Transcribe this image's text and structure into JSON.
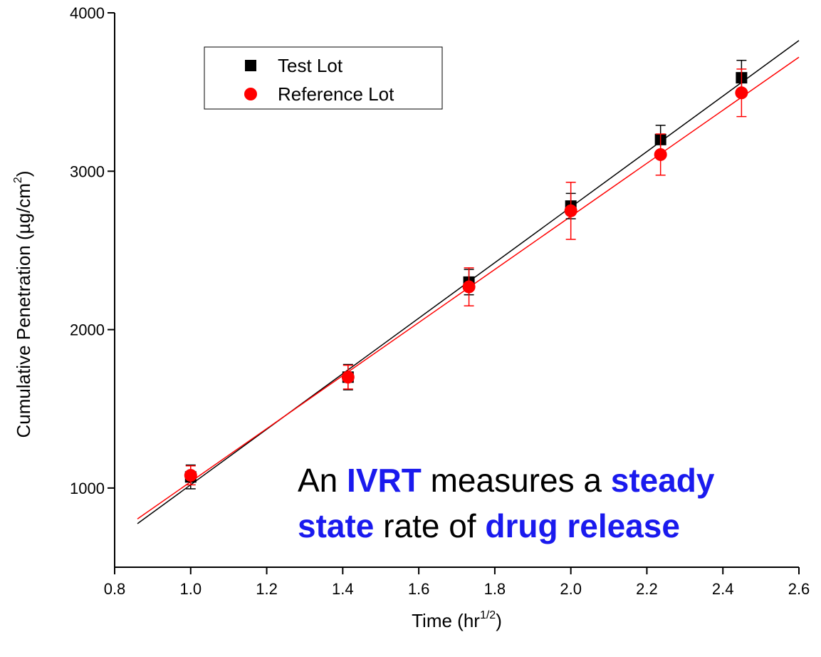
{
  "chart_data": {
    "type": "scatter",
    "xlabel": {
      "text": "Time (hr",
      "sup": "1/2",
      "tail": ")"
    },
    "ylabel": {
      "text": "Cumulative Penetration (µg/cm",
      "sup": "2",
      "tail": ")"
    },
    "x": [
      1.0,
      1.414,
      1.732,
      2.0,
      2.236,
      2.449
    ],
    "series": [
      {
        "name": "Test Lot",
        "color": "#000000",
        "marker": "square",
        "values": [
          1070,
          1700,
          2300,
          2780,
          3200,
          3590
        ],
        "errors": [
          75,
          80,
          80,
          80,
          90,
          110
        ]
      },
      {
        "name": "Reference Lot",
        "color": "#ff0000",
        "marker": "circle",
        "values": [
          1080,
          1700,
          2270,
          2750,
          3105,
          3495
        ],
        "errors": [
          60,
          75,
          120,
          180,
          130,
          150
        ]
      }
    ],
    "fit_lines": [
      {
        "color": "#000000",
        "x": [
          0.86,
          2.6
        ],
        "values": [
          775,
          3825
        ]
      },
      {
        "color": "#ff0000",
        "x": [
          0.86,
          2.6
        ],
        "values": [
          805,
          3720
        ]
      }
    ],
    "xlim": [
      0.8,
      2.6
    ],
    "xticks": [
      {
        "value": 0.8,
        "label": "0.8"
      },
      {
        "value": 1.0,
        "label": "1.0"
      },
      {
        "value": 1.2,
        "label": "1.2"
      },
      {
        "value": 1.4,
        "label": "1.4"
      },
      {
        "value": 1.6,
        "label": "1.6"
      },
      {
        "value": 1.8,
        "label": "1.8"
      },
      {
        "value": 2.0,
        "label": "2.0"
      },
      {
        "value": 2.2,
        "label": "2.2"
      },
      {
        "value": 2.4,
        "label": "2.4"
      },
      {
        "value": 2.6,
        "label": "2.6"
      }
    ],
    "ylim": [
      500,
      4000
    ],
    "yticks": [
      1000,
      2000,
      3000,
      4000
    ],
    "legend": "top-left",
    "annotation": {
      "emphasis_color": "#1a1aee",
      "lines": [
        [
          {
            "text": "An "
          },
          {
            "text": "IVRT",
            "emphasis": true
          },
          {
            "text": " measures a "
          },
          {
            "text": "steady",
            "emphasis": true
          }
        ],
        [
          {
            "text": "state",
            "emphasis": true
          },
          {
            "text": " rate of "
          },
          {
            "text": "drug release",
            "emphasis": true
          }
        ]
      ]
    }
  }
}
